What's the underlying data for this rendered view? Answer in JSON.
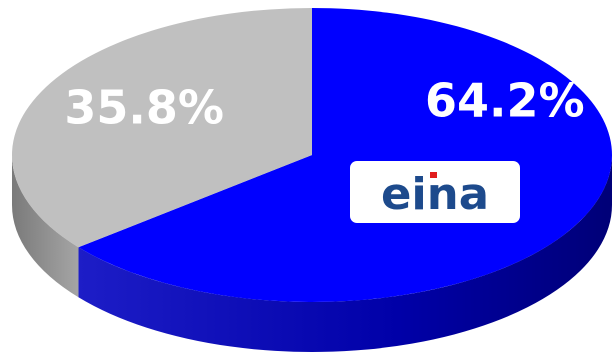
{
  "chart_data": {
    "type": "pie",
    "title": "",
    "slices": [
      {
        "value": 64.2,
        "label": "64.2%",
        "color": "#0000ff",
        "side_color": "#000099"
      },
      {
        "value": 35.8,
        "label": "35.8%",
        "color": "#c0c0c0",
        "side_color": "#8c8c8c"
      }
    ],
    "start_angle_deg": -90,
    "direction": "clockwise"
  },
  "logo": {
    "text": "eina",
    "text_color": "#1d4a8c",
    "accent_color": "#e11d1d"
  }
}
